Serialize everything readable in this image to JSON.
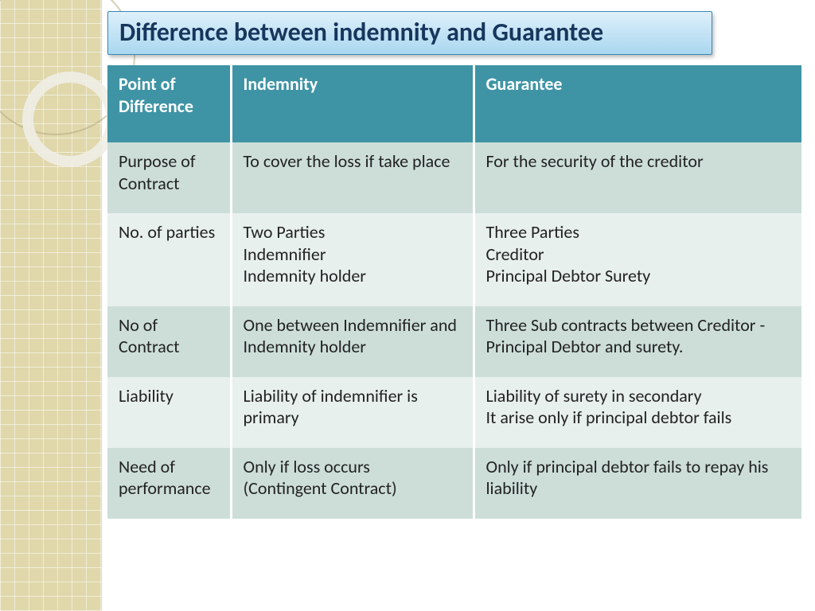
{
  "title": "Difference between indemnity and Guarantee",
  "colors": {
    "header_bg": "#3e94a5",
    "header_text": "#ffffff",
    "row_dark": "#cdded9",
    "row_light": "#e8f0ee",
    "title_text": "#17365d",
    "title_grad_top": "#dff0fb",
    "title_grad_bottom": "#a9d7ef",
    "title_border": "#3a87b6",
    "sidebar_bg": "#e0d7ab"
  },
  "table": {
    "columns": [
      "Point of Difference",
      "Indemnity",
      "Guarantee"
    ],
    "rows": [
      {
        "point": "Purpose of Contract",
        "indemnity": "To cover the loss if take place",
        "guarantee": "For the security of the creditor"
      },
      {
        "point": "No. of parties",
        "indemnity": "Two Parties\nIndemnifier\nIndemnity holder",
        "guarantee": "Three Parties\nCreditor\nPrincipal Debtor Surety"
      },
      {
        "point": "No of Contract",
        "indemnity": "One  between Indemnifier and\nIndemnity holder",
        "guarantee": "Three Sub contracts between Creditor - Principal Debtor  and surety."
      },
      {
        "point": "Liability",
        "indemnity": "Liability of indemnifier is primary",
        "guarantee": "Liability of surety in secondary\nIt arise only if principal debtor fails"
      },
      {
        "point": "Need of performance",
        "indemnity": "Only if loss occurs\n(Contingent Contract)",
        "guarantee": "Only if principal debtor fails to repay his liability"
      }
    ]
  }
}
